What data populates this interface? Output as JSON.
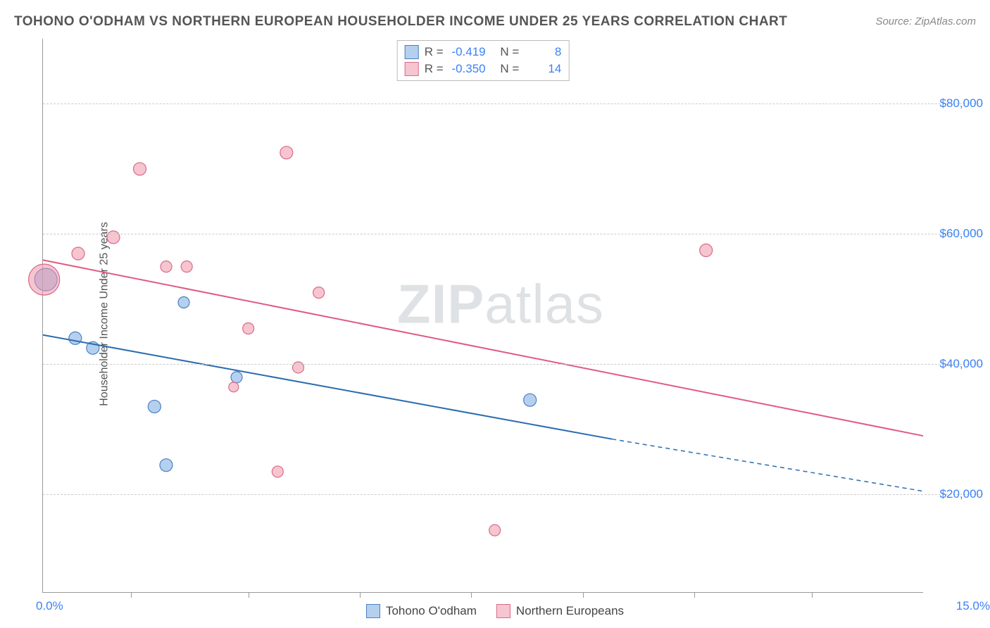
{
  "title": "TOHONO O'ODHAM VS NORTHERN EUROPEAN HOUSEHOLDER INCOME UNDER 25 YEARS CORRELATION CHART",
  "source": "Source: ZipAtlas.com",
  "y_axis_label": "Householder Income Under 25 years",
  "watermark_a": "ZIP",
  "watermark_b": "atlas",
  "chart": {
    "type": "scatter-with-regression",
    "background_color": "#ffffff",
    "grid_color": "#cccccc",
    "axis_color": "#999999",
    "tick_label_color": "#3b82f6",
    "xlim": [
      0,
      15
    ],
    "ylim": [
      5000,
      90000
    ],
    "x_min_label": "0.0%",
    "x_max_label": "15.0%",
    "x_tick_positions": [
      1.5,
      3.5,
      5.4,
      7.3,
      9.2,
      11.1,
      13.1
    ],
    "y_ticks": [
      {
        "value": 20000,
        "label": "$20,000"
      },
      {
        "value": 40000,
        "label": "$40,000"
      },
      {
        "value": 60000,
        "label": "$60,000"
      },
      {
        "value": 80000,
        "label": "$80,000"
      }
    ],
    "series": [
      {
        "name": "Tohono O'odham",
        "fill": "rgba(120,170,225,0.55)",
        "stroke": "#4a80c0",
        "line_color": "#2b6cb0",
        "line_width": 2,
        "points": [
          {
            "x": 0.05,
            "y": 53000,
            "r": 16
          },
          {
            "x": 0.55,
            "y": 44000,
            "r": 9
          },
          {
            "x": 0.85,
            "y": 42500,
            "r": 9
          },
          {
            "x": 1.9,
            "y": 33500,
            "r": 9
          },
          {
            "x": 2.4,
            "y": 49500,
            "r": 8
          },
          {
            "x": 2.1,
            "y": 24500,
            "r": 9
          },
          {
            "x": 3.3,
            "y": 38000,
            "r": 8
          },
          {
            "x": 8.3,
            "y": 34500,
            "r": 9
          }
        ],
        "regression": {
          "x1": 0.0,
          "y1": 44500,
          "x2": 9.7,
          "y2": 28500,
          "extend_to_x": 15.0,
          "extend_to_y": 20500
        }
      },
      {
        "name": "Northern Europeans",
        "fill": "rgba(240,150,170,0.55)",
        "stroke": "#d86b8a",
        "line_color": "#e05a82",
        "line_width": 2,
        "points": [
          {
            "x": 0.02,
            "y": 53000,
            "r": 22
          },
          {
            "x": 0.6,
            "y": 57000,
            "r": 9
          },
          {
            "x": 1.2,
            "y": 59500,
            "r": 9
          },
          {
            "x": 1.65,
            "y": 70000,
            "r": 9
          },
          {
            "x": 2.1,
            "y": 55000,
            "r": 8
          },
          {
            "x": 2.45,
            "y": 55000,
            "r": 8
          },
          {
            "x": 3.25,
            "y": 36500,
            "r": 7
          },
          {
            "x": 3.5,
            "y": 45500,
            "r": 8
          },
          {
            "x": 4.0,
            "y": 23500,
            "r": 8
          },
          {
            "x": 4.15,
            "y": 72500,
            "r": 9
          },
          {
            "x": 4.35,
            "y": 39500,
            "r": 8
          },
          {
            "x": 4.7,
            "y": 51000,
            "r": 8
          },
          {
            "x": 7.7,
            "y": 14500,
            "r": 8
          },
          {
            "x": 11.3,
            "y": 57500,
            "r": 9
          }
        ],
        "regression": {
          "x1": 0.0,
          "y1": 56000,
          "x2": 15.0,
          "y2": 29000
        }
      }
    ],
    "legend_top": [
      {
        "swatch": "blue",
        "r_label": "R =",
        "r_value": "-0.419",
        "n_label": "N =",
        "n_value": "8"
      },
      {
        "swatch": "pink",
        "r_label": "R =",
        "r_value": "-0.350",
        "n_label": "N =",
        "n_value": "14"
      }
    ],
    "legend_bottom": [
      {
        "swatch": "blue",
        "label": "Tohono O'odham"
      },
      {
        "swatch": "pink",
        "label": "Northern Europeans"
      }
    ],
    "title_fontsize": 19,
    "label_fontsize": 16,
    "tick_fontsize": 17
  }
}
